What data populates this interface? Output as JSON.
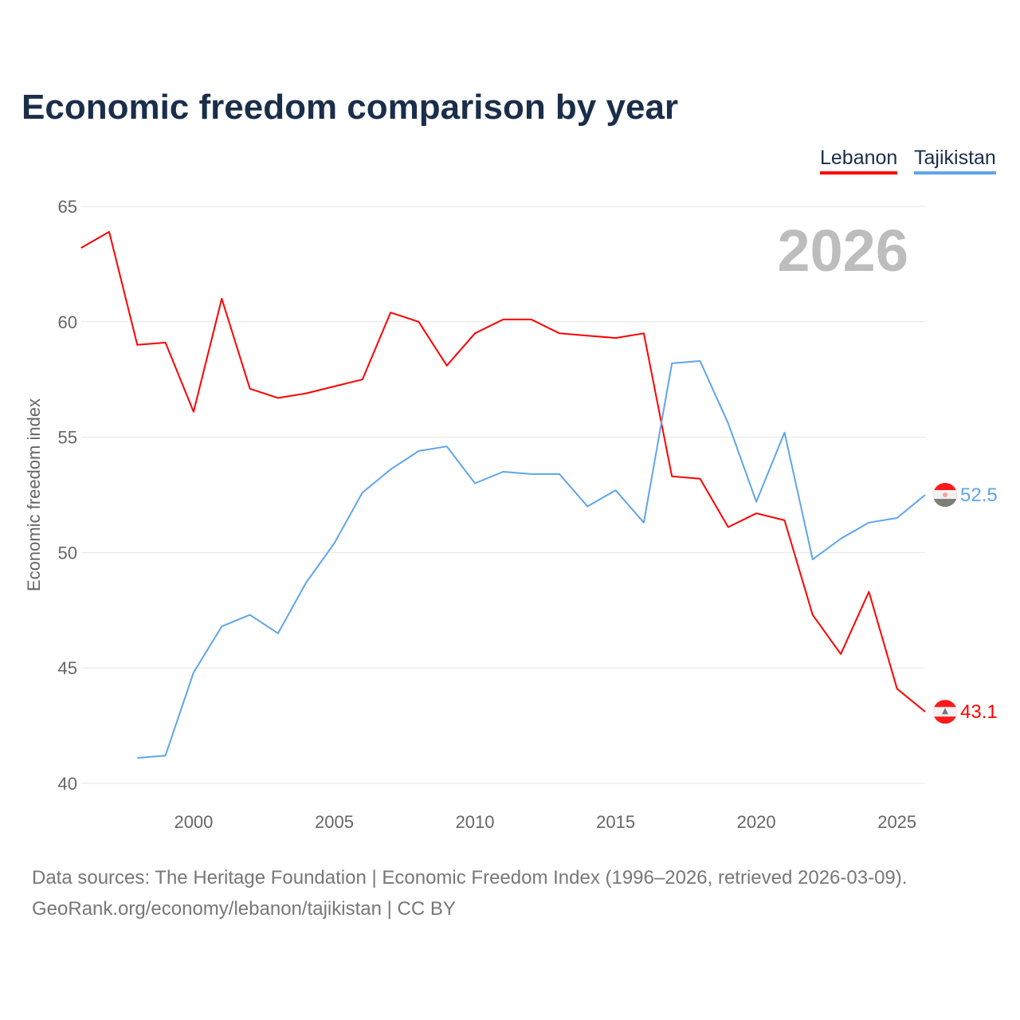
{
  "chart_data": {
    "type": "line",
    "title": "Economic freedom comparison by year",
    "xlabel": "",
    "ylabel": "Economic freedom index",
    "xlim": [
      1996,
      2026
    ],
    "ylim": [
      40,
      65
    ],
    "x_ticks": [
      2000,
      2005,
      2010,
      2015,
      2020,
      2025
    ],
    "y_ticks": [
      40,
      45,
      50,
      55,
      60,
      65
    ],
    "grid": true,
    "legend_position": "top-right",
    "year_watermark": "2026",
    "series": [
      {
        "name": "Lebanon",
        "color": "#ff0000",
        "end_label": "43.1",
        "x": [
          1996,
          1997,
          1998,
          1999,
          2000,
          2001,
          2002,
          2003,
          2004,
          2005,
          2006,
          2007,
          2008,
          2009,
          2010,
          2011,
          2012,
          2013,
          2014,
          2015,
          2016,
          2017,
          2018,
          2019,
          2020,
          2021,
          2022,
          2023,
          2024,
          2025,
          2026
        ],
        "values": [
          63.2,
          63.9,
          59.0,
          59.1,
          56.1,
          61.0,
          57.1,
          56.7,
          56.9,
          57.2,
          57.5,
          60.4,
          60.0,
          58.1,
          59.5,
          60.1,
          60.1,
          59.5,
          59.4,
          59.3,
          59.5,
          53.3,
          53.2,
          51.1,
          51.7,
          51.4,
          47.3,
          45.6,
          48.3,
          44.1,
          43.1
        ]
      },
      {
        "name": "Tajikistan",
        "color": "#5ea5ec",
        "end_label": "52.5",
        "x": [
          1998,
          1999,
          2000,
          2001,
          2002,
          2003,
          2004,
          2005,
          2006,
          2007,
          2008,
          2009,
          2010,
          2011,
          2012,
          2013,
          2014,
          2015,
          2016,
          2017,
          2018,
          2019,
          2020,
          2021,
          2022,
          2023,
          2024,
          2025,
          2026
        ],
        "values": [
          41.1,
          41.2,
          44.8,
          46.8,
          47.3,
          46.5,
          48.7,
          50.4,
          52.6,
          53.6,
          54.4,
          54.6,
          53.0,
          53.5,
          53.4,
          53.4,
          52.0,
          52.7,
          51.3,
          58.2,
          58.3,
          55.6,
          52.2,
          55.2,
          49.7,
          50.6,
          51.3,
          51.5,
          52.5
        ]
      }
    ]
  },
  "footer": {
    "line1": "Data sources: The Heritage Foundation | Economic Freedom Index (1996–2026, retrieved 2026-03-09).",
    "line2": "GeoRank.org/economy/lebanon/tajikistan | CC BY"
  }
}
